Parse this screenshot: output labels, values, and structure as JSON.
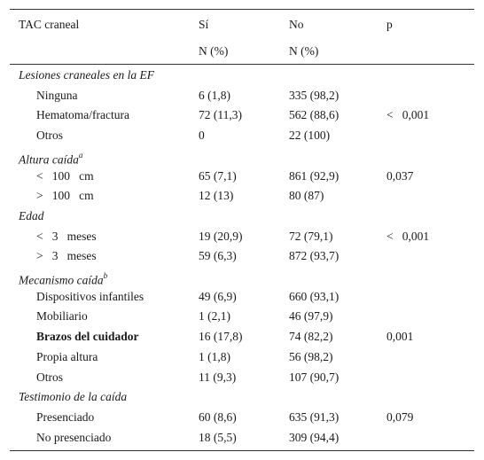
{
  "header": {
    "col1": "TAC craneal",
    "col2": "Sí",
    "col3": "No",
    "col4": "p",
    "col2_sub": "N (%)",
    "col3_sub": "N (%)"
  },
  "rows": [
    {
      "type": "category",
      "label": "Lesiones craneales en la EF",
      "sup": ""
    },
    {
      "type": "item",
      "label": "Ninguna",
      "si": "6 (1,8)",
      "no": "335 (98,2)",
      "p": ""
    },
    {
      "type": "item",
      "label": "Hematoma/fractura",
      "si": "72 (11,3)",
      "no": "562 (88,6)",
      "p": "<   0,001"
    },
    {
      "type": "item",
      "label": "Otros",
      "si": "0",
      "no": "22 (100)",
      "p": ""
    },
    {
      "type": "category",
      "label": "Altura caída",
      "sup": "a"
    },
    {
      "type": "item",
      "label": "<   100   cm",
      "si": "65 (7,1)",
      "no": "861 (92,9)",
      "p": "0,037"
    },
    {
      "type": "item",
      "label": ">   100   cm",
      "si": "12 (13)",
      "no": "80 (87)",
      "p": ""
    },
    {
      "type": "category",
      "label": "Edad",
      "sup": ""
    },
    {
      "type": "item",
      "label": "<   3   meses",
      "si": "19 (20,9)",
      "no": "72 (79,1)",
      "p": "<   0,001"
    },
    {
      "type": "item",
      "label": ">   3   meses",
      "si": "59 (6,3)",
      "no": "872 (93,7)",
      "p": ""
    },
    {
      "type": "category",
      "label": "Mecanismo caída",
      "sup": "b"
    },
    {
      "type": "item",
      "label": "Dispositivos infantiles",
      "si": "49 (6,9)",
      "no": "660 (93,1)",
      "p": ""
    },
    {
      "type": "item",
      "label": "Mobiliario",
      "si": "1 (2,1)",
      "no": "46 (97,9)",
      "p": ""
    },
    {
      "type": "item",
      "label": "Brazos del cuidador",
      "si": "16 (17,8)",
      "no": "74 (82,2)",
      "p": "0,001",
      "bold": true
    },
    {
      "type": "item",
      "label": "Propia altura",
      "si": "1 (1,8)",
      "no": "56 (98,2)",
      "p": ""
    },
    {
      "type": "item",
      "label": "Otros",
      "si": "11 (9,3)",
      "no": "107 (90,7)",
      "p": ""
    },
    {
      "type": "category",
      "label": "Testimonio de la caída",
      "sup": ""
    },
    {
      "type": "item",
      "label": "Presenciado",
      "si": "60 (8,6)",
      "no": "635 (91,3)",
      "p": "0,079"
    },
    {
      "type": "item",
      "label": "No presenciado",
      "si": "18 (5,5)",
      "no": "309 (94,4)",
      "p": ""
    }
  ]
}
